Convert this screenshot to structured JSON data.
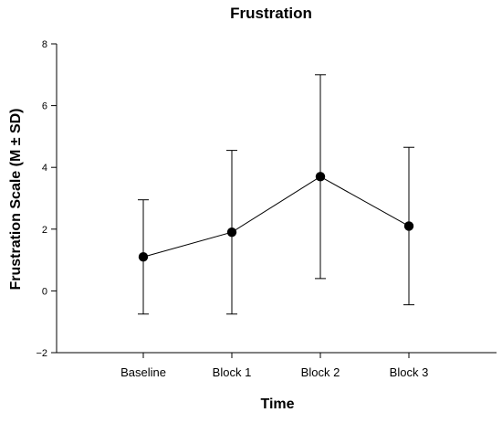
{
  "chart_data": {
    "type": "line",
    "title": "Frustration",
    "xlabel": "Time",
    "ylabel": "Frustration Scale (M ± SD)",
    "categories": [
      "Baseline",
      "Block 1",
      "Block 2",
      "Block 3"
    ],
    "series": [
      {
        "values": [
          1.1,
          1.9,
          3.7,
          2.1
        ],
        "sd": [
          1.85,
          2.65,
          3.3,
          2.55
        ]
      }
    ],
    "ylim": [
      -2,
      8
    ],
    "yticks": [
      -2,
      0,
      2,
      4,
      6,
      8
    ],
    "ytick_labels": [
      "−2",
      "0",
      "2",
      "4",
      "6",
      "8"
    ],
    "grid": false,
    "error_bars": true,
    "marker_color": "#000000",
    "line_color": "#000000"
  }
}
